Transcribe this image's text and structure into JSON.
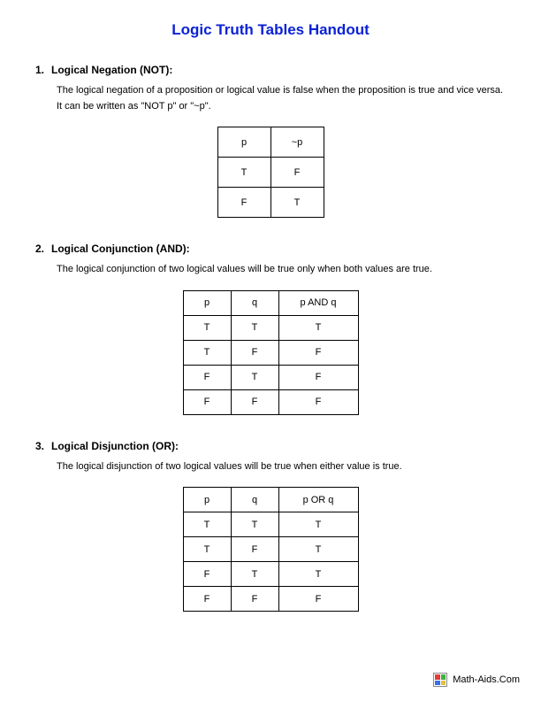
{
  "title": {
    "text": "Logic Truth Tables Handout",
    "color": "#0b22d6"
  },
  "sections": [
    {
      "num": "1.",
      "heading": "Logical Negation (NOT):",
      "description": "The logical negation of a proposition or logical value is false when the proposition is true and vice versa. It can be written as \"NOT p\" or \"~p\".",
      "table": {
        "type": "table",
        "large": true,
        "col_classes": [
          "col-lg",
          "col-lg"
        ],
        "header": [
          "p",
          "~p"
        ],
        "rows": [
          [
            "T",
            "F"
          ],
          [
            "F",
            "T"
          ]
        ]
      }
    },
    {
      "num": "2.",
      "heading": "Logical Conjunction (AND):",
      "description": "The logical conjunction of two logical values will be true only when both values are true.",
      "table": {
        "type": "table",
        "large": false,
        "col_classes": [
          "col-narrow",
          "col-narrow",
          "col-wide"
        ],
        "header": [
          "p",
          "q",
          "p AND q"
        ],
        "rows": [
          [
            "T",
            "T",
            "T"
          ],
          [
            "T",
            "F",
            "F"
          ],
          [
            "F",
            "T",
            "F"
          ],
          [
            "F",
            "F",
            "F"
          ]
        ]
      }
    },
    {
      "num": "3.",
      "heading": "Logical Disjunction (OR):",
      "description": "The logical disjunction of two logical values will be true when either value is true.",
      "table": {
        "type": "table",
        "large": false,
        "col_classes": [
          "col-narrow",
          "col-narrow",
          "col-wide"
        ],
        "header": [
          "p",
          "q",
          "p OR q"
        ],
        "rows": [
          [
            "T",
            "T",
            "T"
          ],
          [
            "T",
            "F",
            "T"
          ],
          [
            "F",
            "T",
            "T"
          ],
          [
            "F",
            "F",
            "F"
          ]
        ]
      }
    }
  ],
  "footer": {
    "text": "Math-Aids.Com",
    "icon_colors": [
      "#e23b3b",
      "#3bb23b",
      "#3b6fe2",
      "#e2c23b"
    ]
  },
  "colors": {
    "text": "#000000",
    "border": "#000000",
    "background": "#ffffff"
  },
  "typography": {
    "title_fontsize": 17,
    "heading_fontsize": 12,
    "body_fontsize": 11,
    "font_family": "Arial"
  }
}
